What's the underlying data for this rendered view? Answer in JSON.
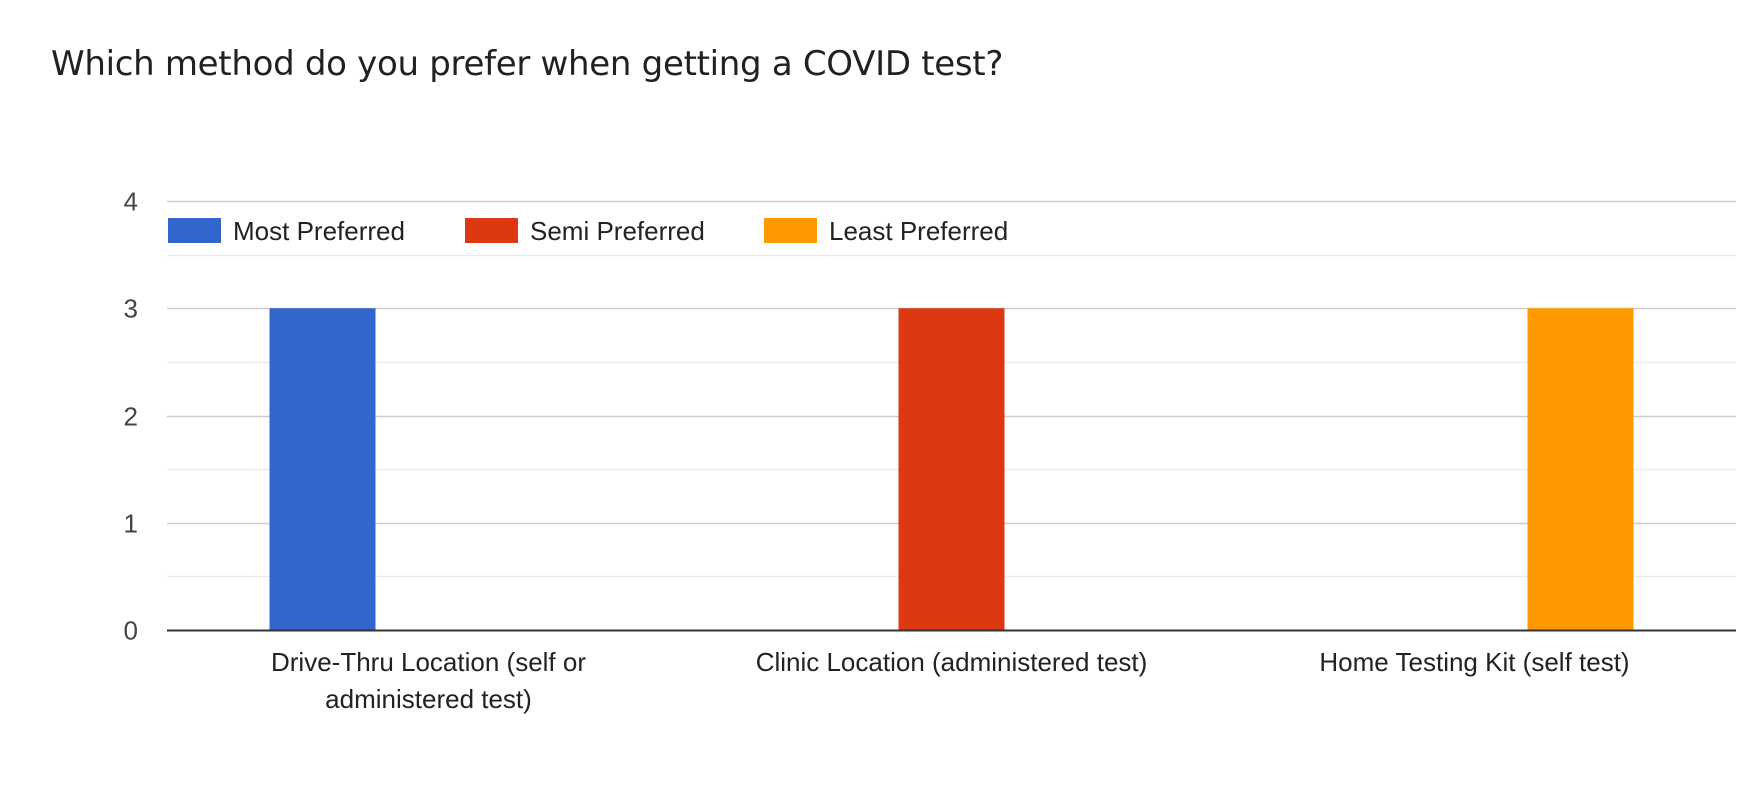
{
  "chart_data": {
    "type": "bar",
    "title": "Which method do you prefer when getting a COVID test?",
    "categories": [
      [
        "Drive-Thru Location (self or",
        "administered test)"
      ],
      [
        "Clinic Location (administered test)"
      ],
      [
        "Home Testing Kit (self test)"
      ]
    ],
    "series": [
      {
        "name": "Most Preferred",
        "color": "#3366cc",
        "values": [
          3,
          0,
          0
        ]
      },
      {
        "name": "Semi Preferred",
        "color": "#dc3912",
        "values": [
          0,
          3,
          0
        ]
      },
      {
        "name": "Least Preferred",
        "color": "#ff9900",
        "values": [
          0,
          0,
          3
        ]
      }
    ],
    "yticks": [
      "0",
      "1",
      "2",
      "3",
      "4"
    ],
    "ylim": [
      0,
      4
    ],
    "legend_position": "top-left",
    "grid": true
  }
}
